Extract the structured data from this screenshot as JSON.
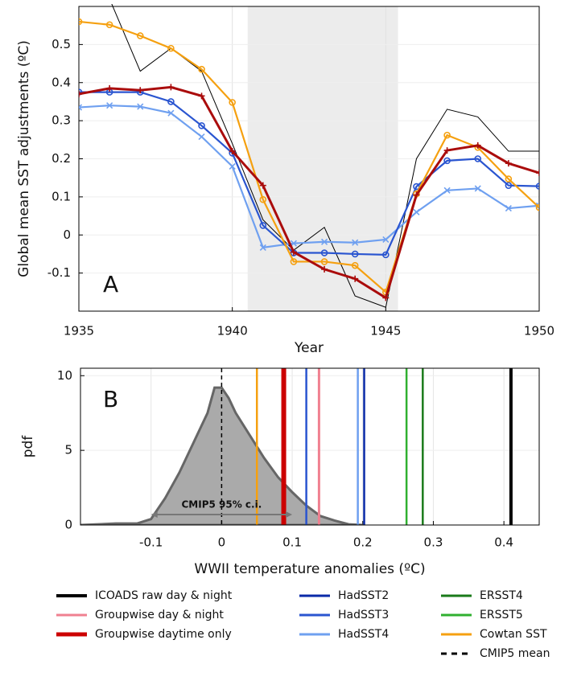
{
  "chart_data": [
    {
      "type": "line",
      "annotation": "A",
      "xlabel": "Year",
      "ylabel": "Global mean SST adjustments (ºC)",
      "x": [
        1935,
        1936,
        1937,
        1938,
        1939,
        1940,
        1941,
        1942,
        1943,
        1944,
        1945,
        1946,
        1947,
        1948,
        1949,
        1950
      ],
      "xlim": [
        1935,
        1950
      ],
      "xticks": [
        1935,
        1940,
        1945,
        1950
      ],
      "ylim": [
        -0.2,
        0.6
      ],
      "yticks": [
        -0.1,
        0,
        0.1,
        0.2,
        0.3,
        0.4,
        0.5
      ],
      "grid": true,
      "shaded_span": [
        1940.5,
        1945.4
      ],
      "series": [
        {
          "color": "#000000",
          "line_width": 1,
          "values": [
            0.7,
            0.62,
            0.43,
            0.49,
            0.43,
            0.24,
            0.04,
            -0.04,
            0.02,
            -0.16,
            -0.19,
            0.2,
            0.33,
            0.31,
            0.22,
            0.22
          ]
        },
        {
          "color": "#6fa0f0",
          "line_width": 2.2,
          "marker": "x",
          "values": [
            0.335,
            0.34,
            0.337,
            0.32,
            0.258,
            0.18,
            -0.033,
            -0.022,
            -0.018,
            -0.02,
            -0.012,
            0.06,
            0.117,
            0.122,
            0.07,
            0.077
          ]
        },
        {
          "color": "#2a55d0",
          "line_width": 2.2,
          "marker": "o",
          "values": [
            0.375,
            0.375,
            0.375,
            0.35,
            0.287,
            0.215,
            0.025,
            -0.047,
            -0.047,
            -0.05,
            -0.052,
            0.127,
            0.195,
            0.2,
            0.13,
            0.128
          ]
        },
        {
          "color": "#f5a010",
          "line_width": 2.2,
          "marker": "o",
          "values": [
            0.56,
            0.552,
            0.523,
            0.49,
            0.435,
            0.348,
            0.093,
            -0.07,
            -0.07,
            -0.08,
            -0.15,
            0.108,
            0.262,
            0.23,
            0.147,
            0.072
          ]
        },
        {
          "color": "#aa0c0c",
          "line_width": 3,
          "marker": "+",
          "values": [
            0.37,
            0.385,
            0.38,
            0.388,
            0.365,
            0.22,
            0.13,
            -0.045,
            -0.09,
            -0.115,
            -0.165,
            0.105,
            0.222,
            0.235,
            0.188,
            0.163
          ]
        }
      ]
    },
    {
      "type": "pdf",
      "annotation": "B",
      "xlabel": "WWII temperature anomalies (ºC)",
      "ylabel": "pdf",
      "x": [
        -0.2,
        -0.15,
        -0.12,
        -0.1,
        -0.08,
        -0.06,
        -0.04,
        -0.02,
        -0.01,
        0,
        0.01,
        0.02,
        0.04,
        0.06,
        0.08,
        0.1,
        0.12,
        0.14,
        0.16,
        0.18,
        0.2
      ],
      "values": [
        0,
        0.1,
        0.1,
        0.4,
        1.8,
        3.5,
        5.5,
        7.5,
        9.2,
        9.2,
        8.5,
        7.5,
        6,
        4.5,
        3.2,
        2.2,
        1.3,
        0.6,
        0.3,
        0.05,
        0
      ],
      "color": "#aaaaaa",
      "ci_label": "CMIP5 95% c.i.",
      "ci_range": [
        -0.1,
        0.1
      ],
      "xlim": [
        -0.2,
        0.45
      ],
      "xticks": [
        -0.1,
        0,
        0.1,
        0.2,
        0.3,
        0.4
      ],
      "ylim": [
        0,
        10.5
      ],
      "yticks": [
        0,
        5,
        10
      ],
      "grid": true,
      "legend": "bottom",
      "series": [
        {
          "name": "ICOADS raw day & night",
          "color": "#000000",
          "line_width": 4,
          "value": 0.41
        },
        {
          "name": "Groupwise day & night",
          "color": "#f08090",
          "line_width": 3,
          "value": 0.138
        },
        {
          "name": "Groupwise daytime only",
          "color": "#cc0000",
          "line_width": 6,
          "value": 0.088
        },
        {
          "name": "HadSST2",
          "color": "#0a2aa8",
          "line_width": 2.5,
          "value": 0.202
        },
        {
          "name": "HadSST3",
          "color": "#2a55d0",
          "line_width": 2.5,
          "value": 0.12
        },
        {
          "name": "HadSST4",
          "color": "#6fa0f0",
          "line_width": 2.5,
          "value": 0.193
        },
        {
          "name": "ERSST4",
          "color": "#1a7a1a",
          "line_width": 2.5,
          "value": 0.285
        },
        {
          "name": "ERSST5",
          "color": "#30b030",
          "line_width": 2.5,
          "value": 0.262
        },
        {
          "name": "Cowtan SST",
          "color": "#f5a010",
          "line_width": 2.5,
          "value": 0.05
        },
        {
          "name": "CMIP5 mean",
          "color": "#000000",
          "line_width": 1.5,
          "dash": true,
          "value": 0
        }
      ]
    }
  ]
}
